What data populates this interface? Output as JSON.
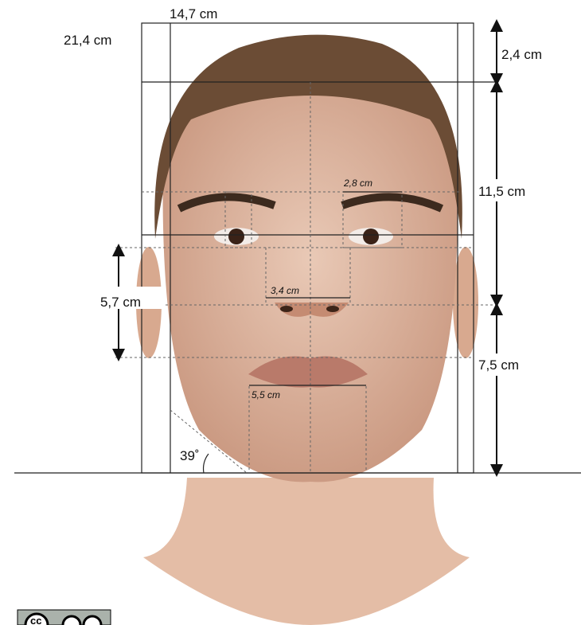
{
  "measurements": {
    "face_width": "14,7 cm",
    "face_height": "21,4 cm",
    "hairline_to_top": "2,4 cm",
    "top_to_nose": "11,5 cm",
    "eye_width": "2,8 cm",
    "nose_width": "3,4 cm",
    "ear_length": "5,7 cm",
    "nose_to_chin": "7,5 cm",
    "mouth_width": "5,5 cm",
    "jaw_angle": "39˚"
  },
  "license_badge": "cc"
}
